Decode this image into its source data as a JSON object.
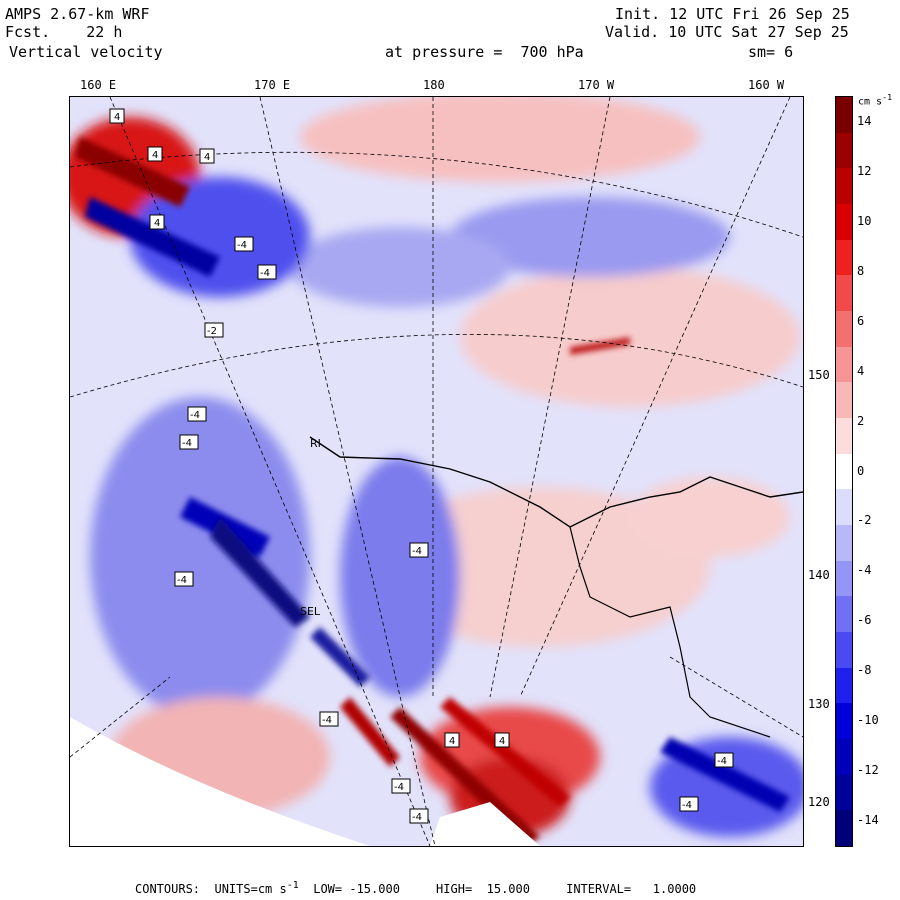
{
  "header": {
    "model": "AMPS 2.67-km WRF",
    "forecast": "Fcst.    22 h",
    "field": "Vertical velocity",
    "level": "at pressure =  700 hPa",
    "init": "Init. 12 UTC Fri 26 Sep 25",
    "valid": "Valid. 10 UTC Sat 27 Sep 25",
    "smoothing": "sm= 6"
  },
  "longitude_labels": [
    "160 E",
    "170 E",
    "180",
    "170 W",
    "160 W"
  ],
  "latitude_labels": [
    "150 W",
    "140 W",
    "130 W",
    "120 W"
  ],
  "colorbar": {
    "unit_label": "cm s",
    "unit_exponent": "-1",
    "tick_labels": [
      "14",
      "12",
      "10",
      "8",
      "6",
      "4",
      "2",
      "0",
      "-2",
      "-4",
      "-6",
      "-8",
      "-10",
      "-12",
      "-14"
    ],
    "min": -15,
    "max": 15,
    "colors": [
      "#7a0000",
      "#9a0000",
      "#bb0000",
      "#d80000",
      "#ee2020",
      "#f24a4a",
      "#f47070",
      "#f69595",
      "#f8b8b8",
      "#fcdcdc",
      "#ffffff",
      "#dcdcfc",
      "#b8b8f8",
      "#9595f6",
      "#7070f4",
      "#4a4af2",
      "#2020ee",
      "#0000d8",
      "#0000bb",
      "#00009a",
      "#00007a"
    ]
  },
  "map_annotations": {
    "station_labels": [
      "RI",
      "SEL"
    ],
    "contour_labels": [
      "4",
      "4",
      "4",
      "4",
      "-4",
      "-4",
      "-2",
      "-4",
      "-4",
      "-4",
      "-4",
      "-4",
      "4",
      "4",
      "-4",
      "-4",
      "-4",
      "-4"
    ]
  },
  "footer": {
    "contours": "CONTOURS:  UNITS=cm s",
    "units_exp": "-1",
    "low": "LOW= -15.000",
    "high": "HIGH=  15.000",
    "interval": "INTERVAL=   1.0000"
  }
}
